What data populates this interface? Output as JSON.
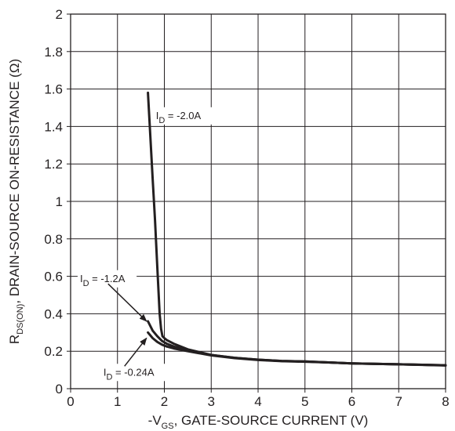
{
  "chart_data": {
    "type": "line",
    "title": "",
    "xlabel": {
      "prefix": "-V",
      "sub": "GS",
      "rest": ", GATE-SOURCE CURRENT (V)"
    },
    "ylabel": {
      "prefix": "R",
      "sub": "DS(ON)",
      "rest": ", DRAIN-SOURCE ON-RESISTANCE (Ω)"
    },
    "xlim": [
      0,
      8
    ],
    "ylim": [
      0,
      2
    ],
    "xticks": [
      0,
      1,
      2,
      3,
      4,
      5,
      6,
      7,
      8
    ],
    "yticks": [
      0,
      0.2,
      0.4,
      0.6,
      0.8,
      1,
      1.2,
      1.4,
      1.6,
      1.8,
      2
    ],
    "ytick_labels": [
      "0",
      "0.2",
      "0.4",
      "0.6",
      "0.8",
      "1",
      "1.2",
      "1.4",
      "1.6",
      "1.8",
      "2"
    ],
    "grid": true,
    "line_color": "#231f20",
    "series": [
      {
        "name": "",
        "x": [
          1.65,
          1.7,
          1.75,
          1.8,
          1.85,
          1.9,
          1.93,
          1.96,
          2.0,
          2.05,
          2.2,
          2.5,
          3.0,
          3.5,
          4.0,
          4.5,
          5.0,
          5.5,
          6.0,
          7.0,
          8.0
        ],
        "y": [
          1.58,
          1.35,
          1.12,
          0.9,
          0.65,
          0.4,
          0.32,
          0.28,
          0.27,
          0.26,
          0.24,
          0.21,
          0.18,
          0.165,
          0.155,
          0.148,
          0.145,
          0.14,
          0.135,
          0.13,
          0.125
        ]
      },
      {
        "name": "",
        "x": [
          1.65,
          1.75,
          1.85,
          1.95,
          2.05,
          2.2,
          2.5,
          3.0,
          3.5,
          4.0,
          4.5,
          5.0,
          5.5,
          6.0,
          7.0,
          8.0
        ],
        "y": [
          0.36,
          0.31,
          0.28,
          0.255,
          0.24,
          0.225,
          0.205,
          0.18,
          0.165,
          0.155,
          0.148,
          0.145,
          0.14,
          0.135,
          0.13,
          0.125
        ]
      },
      {
        "name": "",
        "x": [
          1.65,
          1.75,
          1.85,
          1.95,
          2.05,
          2.2,
          2.5,
          3.0,
          3.5,
          4.0,
          4.5,
          5.0,
          5.5,
          6.0,
          7.0,
          8.0
        ],
        "y": [
          0.3,
          0.27,
          0.25,
          0.235,
          0.225,
          0.215,
          0.2,
          0.178,
          0.163,
          0.153,
          0.147,
          0.144,
          0.14,
          0.135,
          0.13,
          0.124
        ]
      }
    ],
    "annotations": [
      {
        "prefix": "I",
        "sub": "D",
        "rest": " = -2.0A",
        "text_at": [
          1.82,
          1.44
        ],
        "arrow_to": null
      },
      {
        "prefix": "I",
        "sub": "D",
        "rest": " = -1.2A",
        "text_at": [
          0.2,
          0.57
        ],
        "arrow_start": [
          0.8,
          0.56
        ],
        "arrow_to": [
          1.62,
          0.36
        ]
      },
      {
        "prefix": "I",
        "sub": "D",
        "rest": " = -0.24A",
        "text_at": [
          0.7,
          0.07
        ],
        "arrow_start": [
          1.15,
          0.12
        ],
        "arrow_to": [
          1.62,
          0.27
        ]
      }
    ]
  }
}
